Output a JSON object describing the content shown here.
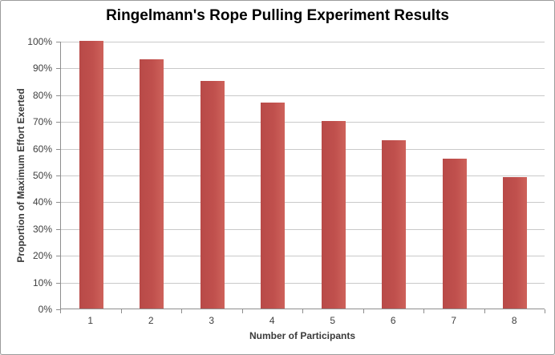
{
  "chart_data": {
    "type": "bar",
    "title": "Ringelmann's Rope Pulling Experiment Results",
    "xlabel": "Number of Participants",
    "ylabel": "Proportion of Maximum Effort Exerted",
    "categories": [
      "1",
      "2",
      "3",
      "4",
      "5",
      "6",
      "7",
      "8"
    ],
    "values": [
      100,
      93,
      85,
      77,
      70,
      63,
      56,
      49
    ],
    "ylim": [
      0,
      100
    ],
    "y_tick_step": 10,
    "y_tick_suffix": "%",
    "y_tick_labels": [
      "0%",
      "10%",
      "20%",
      "30%",
      "40%",
      "50%",
      "60%",
      "70%",
      "80%",
      "90%",
      "100%"
    ],
    "grid": true,
    "legend_position": "none",
    "bar_color": "#C0504D",
    "bar_highlight_color": "#CE625B",
    "bar_shadow_color": "#B84A48",
    "gridline_color": "#C9C9C9",
    "axis_color": "#8E8E8E",
    "tick_label_color": "#3F3F3F",
    "title_color": "#000000"
  }
}
